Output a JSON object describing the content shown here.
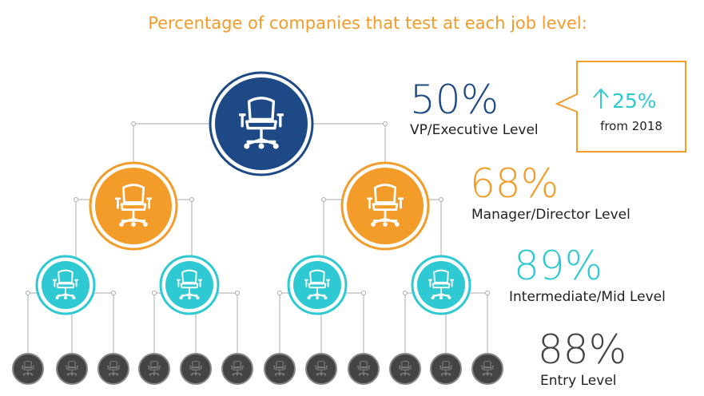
{
  "title": "Percentage of companies that test at each job level:",
  "levels": [
    {
      "percent": "50%",
      "label": "VP/Executive Level"
    },
    {
      "percent": "68%",
      "label": "Manager/Director Level"
    },
    {
      "percent": "89%",
      "label": "Intermediate/Mid Level"
    },
    {
      "percent": "88%",
      "label": "Entry Level"
    }
  ],
  "callout": {
    "change": "25%",
    "note": "from 2018"
  }
}
